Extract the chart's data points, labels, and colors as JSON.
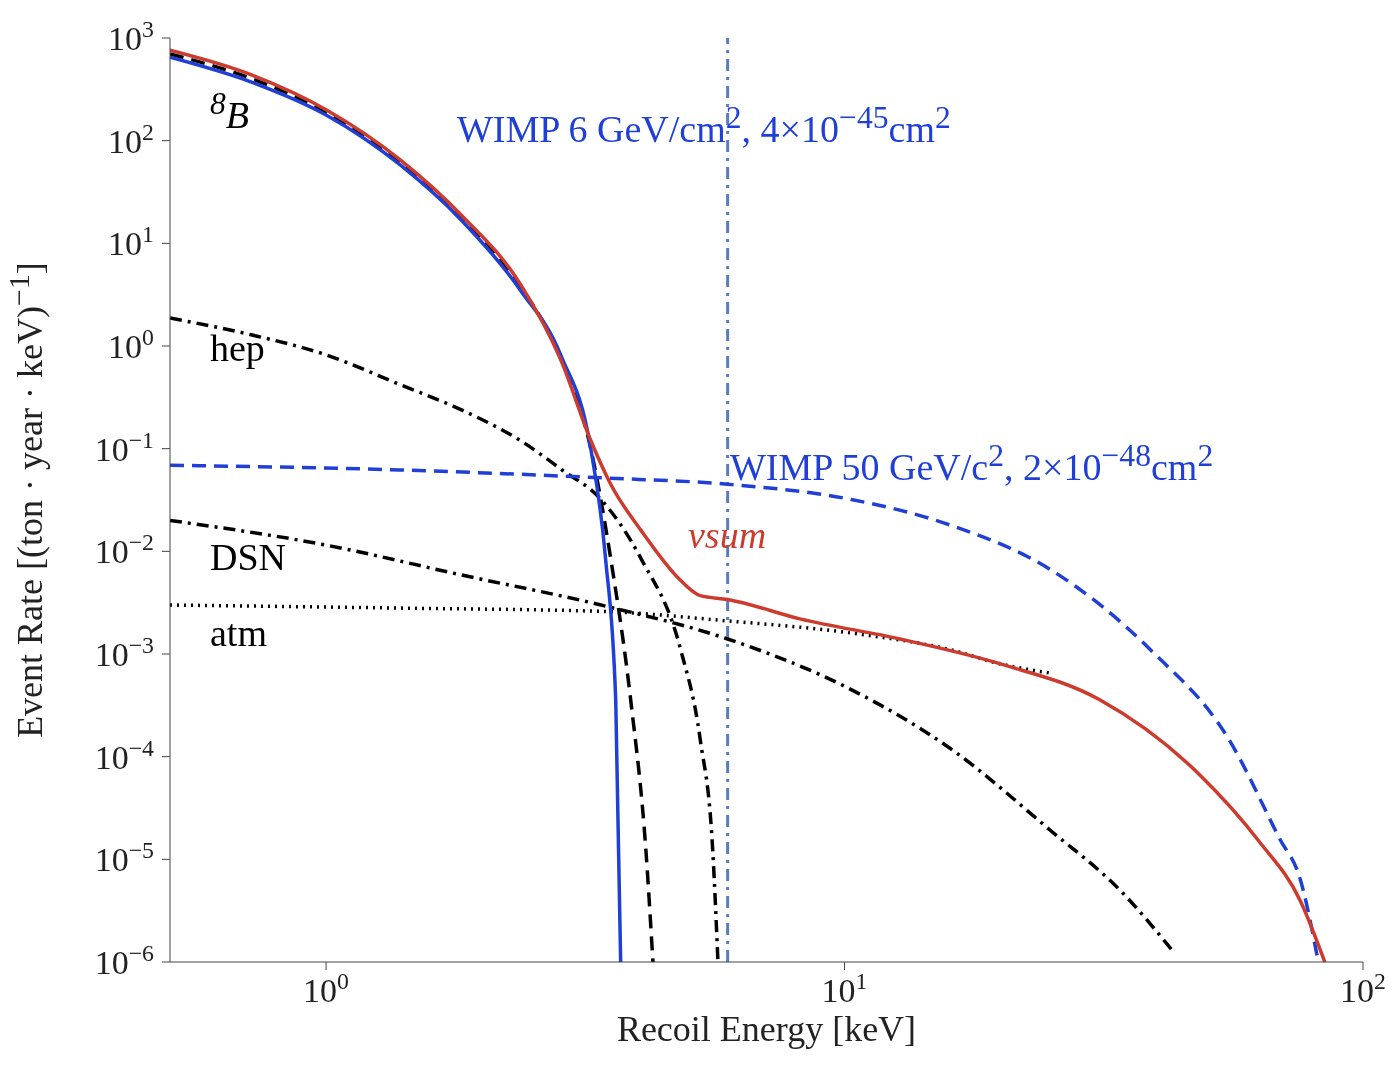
{
  "chart_data": {
    "type": "line",
    "xlabel": "Recoil Energy [keV]",
    "ylabel": "Event Rate [(ton · year · keV)$^{−1}$]",
    "log": "xy",
    "xlim": [
      0.5,
      100
    ],
    "xticks": [
      {
        "value": 1,
        "label": "10$^{0}$"
      },
      {
        "value": 10,
        "label": "10$^{1}$"
      },
      {
        "value": 100,
        "label": "10$^{2}$"
      }
    ],
    "ylim": [
      1e-06,
      1000
    ],
    "yticks": [
      {
        "value": 1e-06,
        "label": "10$^{−6}$"
      },
      {
        "value": 1e-05,
        "label": "10$^{−5}$"
      },
      {
        "value": 0.0001,
        "label": "10$^{−4}$"
      },
      {
        "value": 0.001,
        "label": "10$^{−3}$"
      },
      {
        "value": 0.01,
        "label": "10$^{−2}$"
      },
      {
        "value": 0.1,
        "label": "10$^{−1}$"
      },
      {
        "value": 1,
        "label": "10$^{0}$"
      },
      {
        "value": 10,
        "label": "10$^{1}$"
      },
      {
        "value": 100,
        "label": "10$^{2}$"
      },
      {
        "value": 1000,
        "label": "10$^{3}$"
      }
    ],
    "series": [
      {
        "name": "$^{8}$B",
        "color": "#000000",
        "line_style": "dashed",
        "x": [
          0.5,
          0.72,
          1,
          1.39,
          1.82,
          2.37,
          2.84,
          3.24,
          3.54,
          3.87,
          4.14,
          4.27
        ],
        "values": [
          700,
          400,
          190,
          62,
          18,
          3.8,
          0.75,
          0.1,
          0.0085,
          0.00035,
          1.2e-05,
          1e-06
        ]
      },
      {
        "name": "hep",
        "color": "#000000",
        "line_style": "dashdot",
        "x": [
          0.5,
          0.72,
          1,
          1.39,
          1.82,
          2.37,
          2.84,
          3.39,
          4.05,
          4.83,
          5.27,
          5.57,
          5.7
        ],
        "values": [
          1.87,
          1.28,
          0.82,
          0.42,
          0.24,
          0.12,
          0.063,
          0.032,
          0.0085,
          0.0011,
          0.000145,
          1.2e-05,
          1e-06
        ]
      },
      {
        "name": "DSN",
        "color": "#000000",
        "line_style": "dashdot",
        "x": [
          0.5,
          1,
          1.82,
          3.39,
          5.95,
          10.3,
          16,
          25,
          34,
          43.4
        ],
        "values": [
          0.02,
          0.0115,
          0.0059,
          0.003,
          0.0014,
          0.00045,
          0.00012,
          1.9e-05,
          5e-06,
          1.2e-06
        ]
      },
      {
        "name": "atm",
        "color": "#000000",
        "line_style": "dotted",
        "x": [
          0.5,
          1.39,
          3.39,
          5.95,
          10.3,
          16,
          20,
          25
        ],
        "values": [
          0.003,
          0.0028,
          0.0026,
          0.0021,
          0.0016,
          0.0011,
          0.0008,
          0.00065
        ]
      },
      {
        "name": "WIMP 6 GeV/cm$^{2}$, 4×10$^{−45}$cm$^{2}$",
        "color": "#1f3fd6",
        "line_style": "solid",
        "x": [
          0.5,
          0.72,
          1,
          1.39,
          1.82,
          2.37,
          2.84,
          3.24,
          3.46,
          3.62,
          3.7
        ],
        "values": [
          650,
          370,
          178,
          58,
          17,
          3.5,
          0.8,
          0.1,
          0.0085,
          0.00035,
          1e-06
        ]
      },
      {
        "name": "WIMP 50 GeV/c$^{2}$, 2×10$^{−48}$cm$^{2}$",
        "color": "#1f3fd6",
        "line_style": "dashed",
        "x": [
          0.5,
          1.39,
          3.39,
          5.95,
          10.3,
          16,
          25,
          38.9,
          55,
          69,
          75.6,
          82
        ],
        "values": [
          0.069,
          0.062,
          0.052,
          0.045,
          0.032,
          0.018,
          0.0066,
          0.0011,
          0.00015,
          1.6e-05,
          6.5e-06,
          1e-06
        ]
      },
      {
        "name": "νsum",
        "color": "#cc3b2e",
        "line_style": "solid",
        "x": [
          0.5,
          0.72,
          1,
          1.39,
          1.82,
          2.37,
          2.84,
          3.24,
          3.54,
          4.05,
          4.83,
          5.27,
          5.95,
          8.2,
          12.8,
          20,
          31,
          48.5,
          63,
          75.6,
          84.4
        ],
        "values": [
          760,
          435,
          200,
          65,
          19,
          4,
          0.72,
          0.12,
          0.045,
          0.016,
          0.0052,
          0.0037,
          0.0034,
          0.0022,
          0.0014,
          0.0008,
          0.00036,
          6.6e-05,
          1.5e-05,
          4e-06,
          1e-06
        ]
      }
    ],
    "ref_lines": [
      {
        "axis": "x",
        "value": 5.95,
        "color": "#5a7cc0",
        "line_style": "dashdot"
      }
    ]
  }
}
